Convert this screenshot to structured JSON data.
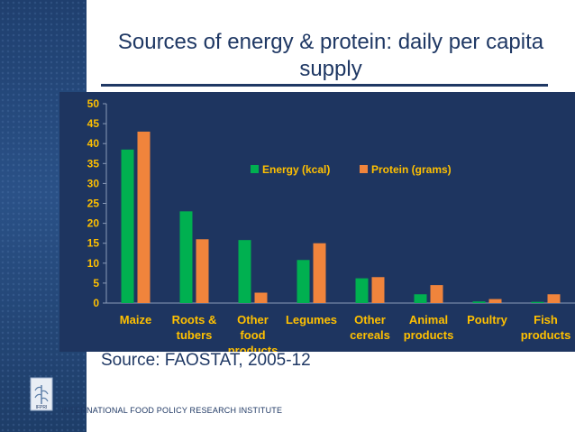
{
  "slide": {
    "title": "Sources of energy & protein: daily per capita supply",
    "source": "Source: FAOSTAT, 2005-12",
    "footer": "INTERNATIONAL FOOD POLICY RESEARCH INSTITUTE",
    "logo_text": "IFPRI"
  },
  "colors": {
    "energy": "#00b050",
    "protein": "#f0843c",
    "axis_text": "#ffc000",
    "legend_text": "#ffc000",
    "title": "#1f3864"
  },
  "chart_data": {
    "type": "bar",
    "title": "",
    "xlabel": "",
    "ylabel": "",
    "ylim": [
      0,
      50
    ],
    "yticks": [
      0,
      5,
      10,
      15,
      20,
      25,
      30,
      35,
      40,
      45,
      50
    ],
    "categories": [
      [
        "Maize"
      ],
      [
        "Roots &",
        "tubers"
      ],
      [
        "Other",
        "food",
        "products"
      ],
      [
        "Legumes"
      ],
      [
        "Other",
        "cereals"
      ],
      [
        "Animal",
        "products"
      ],
      [
        "Poultry"
      ],
      [
        "Fish",
        "products"
      ]
    ],
    "series": [
      {
        "name": "Energy (kcal)",
        "values": [
          38.5,
          23,
          15.8,
          10.8,
          6.2,
          2.2,
          0.4,
          0.3
        ]
      },
      {
        "name": "Protein (grams)",
        "values": [
          43,
          16,
          2.6,
          15,
          6.5,
          4.5,
          1.0,
          2.2
        ]
      }
    ],
    "legend_position": "top-right"
  }
}
